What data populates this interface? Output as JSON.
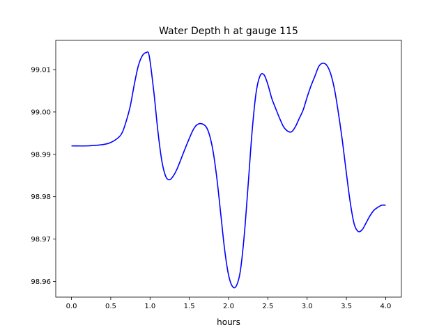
{
  "chart_data": {
    "type": "line",
    "title": "Water Depth h at gauge 115",
    "xlabel": "hours",
    "ylabel": "",
    "xlim": [
      -0.2,
      4.2
    ],
    "ylim": [
      98.9563,
      99.0169
    ],
    "grid": false,
    "x_ticks": [
      {
        "value": 0.0,
        "label": "0.0"
      },
      {
        "value": 0.5,
        "label": "0.5"
      },
      {
        "value": 1.0,
        "label": "1.0"
      },
      {
        "value": 1.5,
        "label": "1.5"
      },
      {
        "value": 2.0,
        "label": "2.0"
      },
      {
        "value": 2.5,
        "label": "2.5"
      },
      {
        "value": 3.0,
        "label": "3.0"
      },
      {
        "value": 3.5,
        "label": "3.5"
      },
      {
        "value": 4.0,
        "label": "4.0"
      }
    ],
    "y_ticks": [
      {
        "value": 98.96,
        "label": "98.96"
      },
      {
        "value": 98.97,
        "label": "98.97"
      },
      {
        "value": 98.98,
        "label": "98.98"
      },
      {
        "value": 98.99,
        "label": "98.99"
      },
      {
        "value": 99.0,
        "label": "99.00"
      },
      {
        "value": 99.01,
        "label": "99.01"
      }
    ],
    "series": [
      {
        "color": "#0000ff",
        "x": [
          0.0,
          0.2,
          0.4,
          0.5,
          0.6,
          0.65,
          0.7,
          0.75,
          0.8,
          0.85,
          0.9,
          0.95,
          0.99,
          1.05,
          1.1,
          1.15,
          1.2,
          1.25,
          1.3,
          1.35,
          1.45,
          1.55,
          1.62,
          1.7,
          1.75,
          1.8,
          1.85,
          1.9,
          1.95,
          2.0,
          2.05,
          2.1,
          2.15,
          2.2,
          2.25,
          2.3,
          2.35,
          2.4,
          2.45,
          2.5,
          2.55,
          2.6,
          2.65,
          2.7,
          2.75,
          2.8,
          2.85,
          2.9,
          2.95,
          3.0,
          3.05,
          3.1,
          3.15,
          3.2,
          3.25,
          3.3,
          3.35,
          3.4,
          3.45,
          3.5,
          3.55,
          3.6,
          3.65,
          3.7,
          3.75,
          3.8,
          3.85,
          3.9,
          3.95,
          4.0
        ],
        "y": [
          98.992,
          98.992,
          98.9923,
          98.9928,
          98.994,
          98.9953,
          98.998,
          99.0015,
          99.0065,
          99.0108,
          99.0132,
          99.014,
          99.0132,
          99.0045,
          98.9955,
          98.9885,
          98.9848,
          98.984,
          98.985,
          98.9868,
          98.9915,
          98.9958,
          98.9972,
          98.9968,
          98.995,
          98.991,
          98.9845,
          98.976,
          98.9675,
          98.9615,
          98.9588,
          98.959,
          98.9625,
          98.971,
          98.983,
          98.9955,
          99.0045,
          99.0085,
          99.0088,
          99.0065,
          99.0032,
          99.0008,
          98.9985,
          98.9965,
          98.9955,
          98.9953,
          98.9965,
          98.9985,
          99.0005,
          99.0035,
          99.0062,
          99.0085,
          99.0108,
          99.0115,
          99.011,
          99.009,
          99.0052,
          98.9995,
          98.993,
          98.9855,
          98.9785,
          98.9735,
          98.9718,
          98.9722,
          98.9738,
          98.9755,
          98.9768,
          98.9775,
          98.978,
          98.978
        ]
      }
    ]
  }
}
